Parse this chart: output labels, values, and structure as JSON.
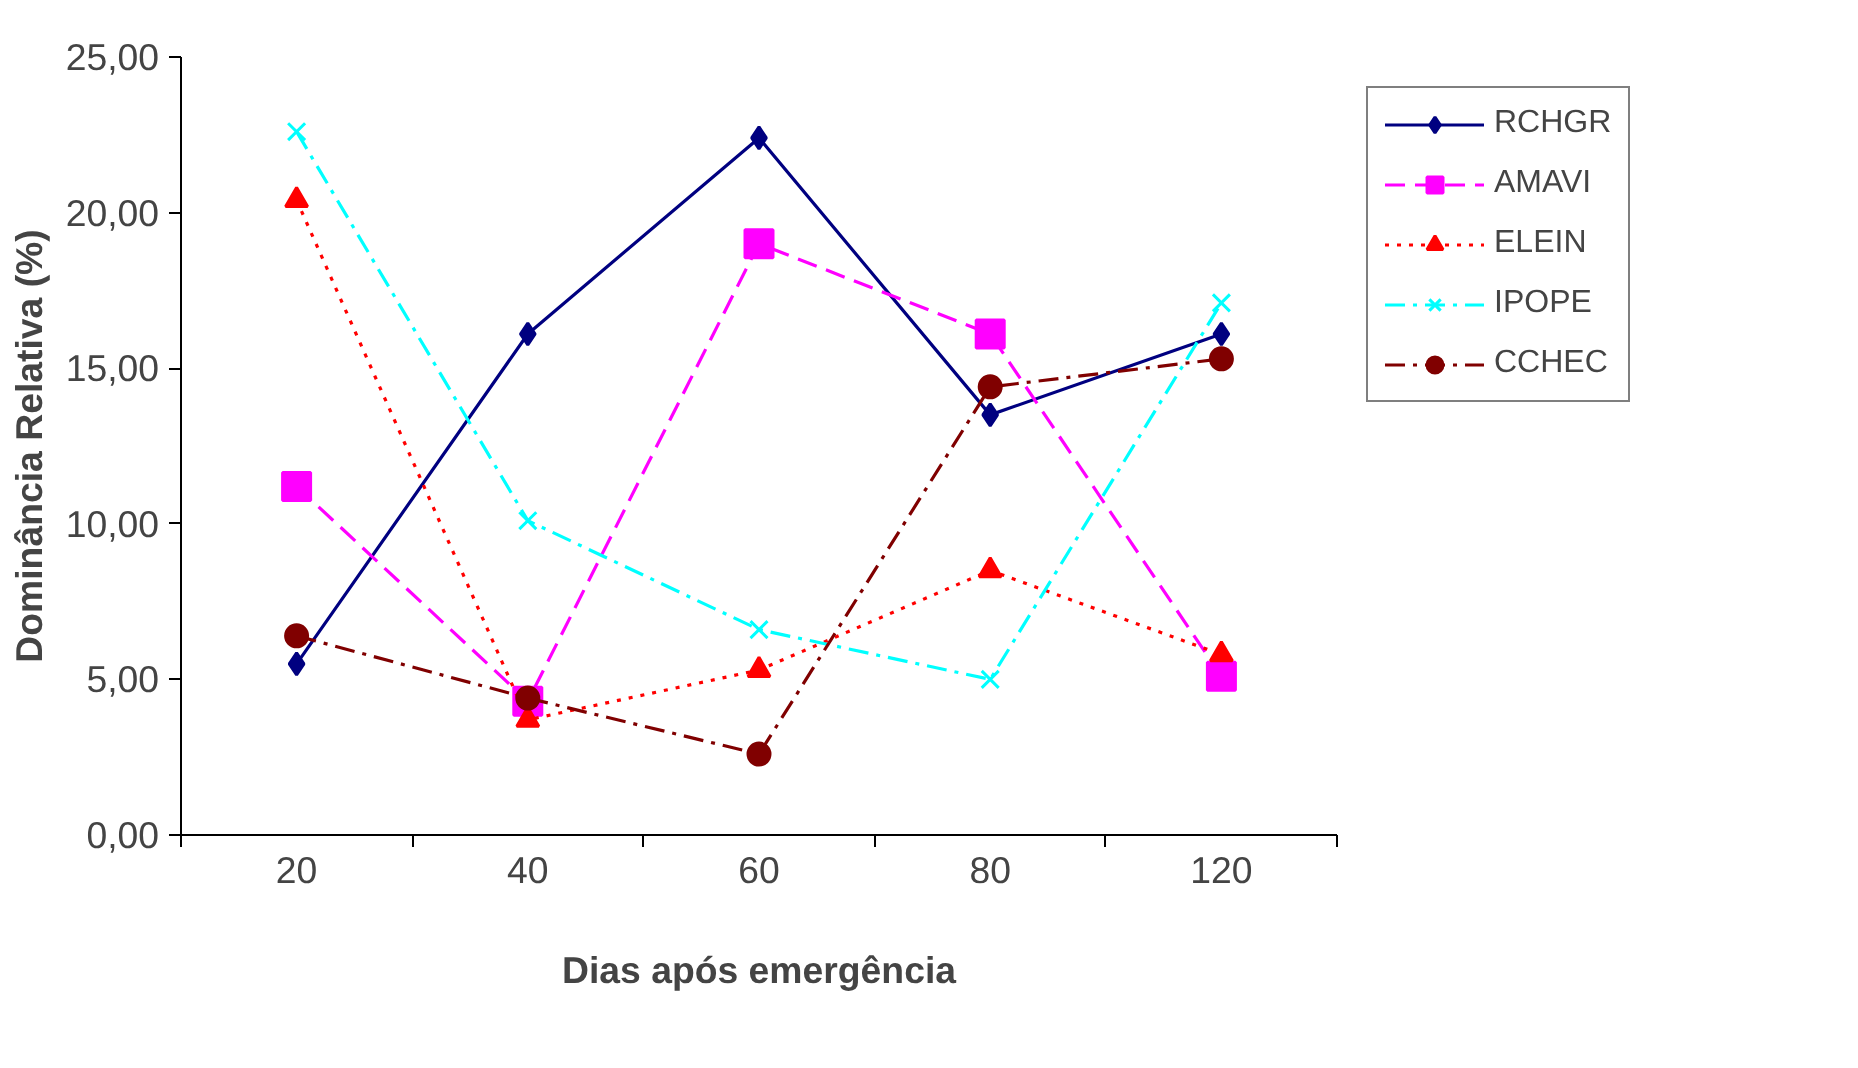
{
  "chart_data": {
    "type": "line",
    "xlabel": "Dias após emergência",
    "ylabel": "Dominância Relativa (%)",
    "categories": [
      "20",
      "40",
      "60",
      "80",
      "120"
    ],
    "ylim": [
      0,
      25
    ],
    "yticks": [
      {
        "value": 0,
        "label": "0,00"
      },
      {
        "value": 5,
        "label": "5,00"
      },
      {
        "value": 10,
        "label": "10,00"
      },
      {
        "value": 15,
        "label": "15,00"
      },
      {
        "value": 20,
        "label": "20,00"
      },
      {
        "value": 25,
        "label": "25,00"
      }
    ],
    "grid": false,
    "legend": "right",
    "series": [
      {
        "name": "RCHGR",
        "color": "#000080",
        "marker": "diamond",
        "line_style": "solid",
        "values": [
          5.5,
          16.1,
          22.4,
          13.5,
          16.1
        ]
      },
      {
        "name": "AMAVI",
        "color": "#ff00ff",
        "marker": "square",
        "line_style": "dashed",
        "values": [
          11.2,
          4.3,
          19.0,
          16.1,
          5.1
        ]
      },
      {
        "name": "ELEIN",
        "color": "#ff0000",
        "marker": "triangle",
        "line_style": "dotted",
        "values": [
          20.4,
          3.7,
          5.3,
          8.5,
          5.8
        ]
      },
      {
        "name": "IPOPE",
        "color": "#00ffff",
        "marker": "cross",
        "line_style": "dashdot",
        "values": [
          22.6,
          10.1,
          6.6,
          5.0,
          17.1
        ]
      },
      {
        "name": "CCHEC",
        "color": "#800000",
        "marker": "circle",
        "line_style": "dashdot",
        "values": [
          6.4,
          4.4,
          2.6,
          14.4,
          15.3
        ]
      }
    ]
  }
}
